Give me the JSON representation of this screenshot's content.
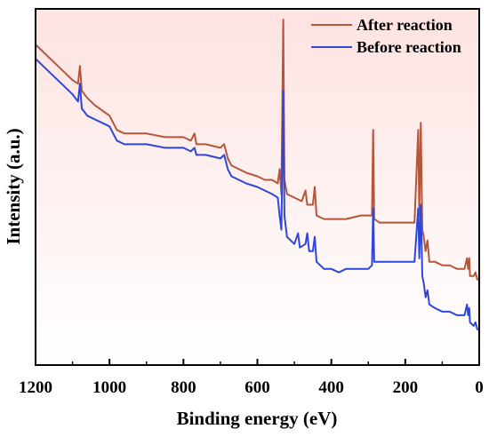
{
  "chart_data": {
    "type": "line",
    "title": "",
    "xlabel": "Binding energy (eV)",
    "ylabel": "Intensity (a.u.)",
    "xlim": [
      1200,
      0
    ],
    "x_reversed": true,
    "x_ticks": [
      1200,
      1000,
      800,
      600,
      400,
      200,
      0
    ],
    "y_ticks_shown": false,
    "ylim": [
      0,
      100
    ],
    "legend_position": "top-right",
    "background_color": "#fde8e6",
    "series": [
      {
        "name": "After reaction",
        "color": "#b5553a",
        "points": [
          [
            1200,
            90
          ],
          [
            1180,
            88
          ],
          [
            1150,
            85
          ],
          [
            1120,
            82
          ],
          [
            1100,
            80
          ],
          [
            1085,
            79
          ],
          [
            1080,
            84
          ],
          [
            1075,
            77
          ],
          [
            1060,
            75
          ],
          [
            1040,
            73
          ],
          [
            1000,
            70
          ],
          [
            990,
            68
          ],
          [
            980,
            66
          ],
          [
            960,
            65
          ],
          [
            900,
            65
          ],
          [
            850,
            64
          ],
          [
            800,
            64
          ],
          [
            780,
            63
          ],
          [
            770,
            65
          ],
          [
            765,
            62
          ],
          [
            740,
            62
          ],
          [
            700,
            61
          ],
          [
            690,
            62
          ],
          [
            685,
            60
          ],
          [
            680,
            58
          ],
          [
            670,
            56
          ],
          [
            650,
            55
          ],
          [
            630,
            54
          ],
          [
            600,
            53
          ],
          [
            580,
            52
          ],
          [
            560,
            52
          ],
          [
            545,
            51
          ],
          [
            540,
            55
          ],
          [
            535,
            48
          ],
          [
            530,
            97
          ],
          [
            527,
            52
          ],
          [
            520,
            48
          ],
          [
            500,
            47
          ],
          [
            480,
            46
          ],
          [
            470,
            49
          ],
          [
            465,
            45
          ],
          [
            450,
            45
          ],
          [
            445,
            50
          ],
          [
            440,
            42
          ],
          [
            420,
            41
          ],
          [
            400,
            41
          ],
          [
            380,
            41
          ],
          [
            360,
            41
          ],
          [
            320,
            42
          ],
          [
            300,
            42
          ],
          [
            290,
            42
          ],
          [
            287,
            66
          ],
          [
            284,
            41
          ],
          [
            270,
            40
          ],
          [
            240,
            40
          ],
          [
            200,
            40
          ],
          [
            175,
            40
          ],
          [
            165,
            66
          ],
          [
            162,
            42
          ],
          [
            158,
            68
          ],
          [
            154,
            38
          ],
          [
            150,
            36
          ],
          [
            145,
            32
          ],
          [
            140,
            35
          ],
          [
            135,
            29
          ],
          [
            120,
            29
          ],
          [
            100,
            28
          ],
          [
            80,
            28
          ],
          [
            60,
            27
          ],
          [
            40,
            27
          ],
          [
            33,
            30
          ],
          [
            30,
            27
          ],
          [
            27,
            30
          ],
          [
            25,
            25
          ],
          [
            15,
            25
          ],
          [
            10,
            26
          ],
          [
            5,
            24
          ],
          [
            0,
            24
          ]
        ]
      },
      {
        "name": "Before reaction",
        "color": "#2f47d8",
        "points": [
          [
            1200,
            86
          ],
          [
            1180,
            84
          ],
          [
            1150,
            81
          ],
          [
            1120,
            78
          ],
          [
            1100,
            76
          ],
          [
            1085,
            74
          ],
          [
            1080,
            79
          ],
          [
            1075,
            72
          ],
          [
            1060,
            70
          ],
          [
            1040,
            69
          ],
          [
            1000,
            67
          ],
          [
            990,
            65
          ],
          [
            980,
            63
          ],
          [
            960,
            62
          ],
          [
            900,
            62
          ],
          [
            850,
            61
          ],
          [
            800,
            61
          ],
          [
            780,
            60
          ],
          [
            770,
            61
          ],
          [
            765,
            59
          ],
          [
            740,
            59
          ],
          [
            700,
            58
          ],
          [
            690,
            59
          ],
          [
            685,
            57
          ],
          [
            680,
            55
          ],
          [
            670,
            53
          ],
          [
            650,
            52
          ],
          [
            630,
            51
          ],
          [
            600,
            50
          ],
          [
            580,
            49
          ],
          [
            560,
            48
          ],
          [
            545,
            47
          ],
          [
            540,
            42
          ],
          [
            535,
            38
          ],
          [
            530,
            77
          ],
          [
            527,
            42
          ],
          [
            520,
            36
          ],
          [
            500,
            34
          ],
          [
            490,
            37
          ],
          [
            485,
            33
          ],
          [
            470,
            34
          ],
          [
            465,
            37
          ],
          [
            460,
            32
          ],
          [
            450,
            32
          ],
          [
            445,
            36
          ],
          [
            440,
            29
          ],
          [
            420,
            27
          ],
          [
            400,
            27
          ],
          [
            380,
            26
          ],
          [
            360,
            27
          ],
          [
            320,
            27
          ],
          [
            300,
            27
          ],
          [
            290,
            28
          ],
          [
            287,
            44
          ],
          [
            284,
            29
          ],
          [
            270,
            29
          ],
          [
            240,
            29
          ],
          [
            200,
            29
          ],
          [
            175,
            29
          ],
          [
            165,
            44
          ],
          [
            162,
            30
          ],
          [
            158,
            45
          ],
          [
            154,
            25
          ],
          [
            150,
            23
          ],
          [
            145,
            19
          ],
          [
            140,
            21
          ],
          [
            135,
            17
          ],
          [
            120,
            16
          ],
          [
            100,
            15
          ],
          [
            80,
            15
          ],
          [
            60,
            14
          ],
          [
            40,
            14
          ],
          [
            33,
            17
          ],
          [
            30,
            14
          ],
          [
            27,
            16
          ],
          [
            25,
            12
          ],
          [
            15,
            11
          ],
          [
            10,
            12
          ],
          [
            5,
            10
          ],
          [
            0,
            10
          ]
        ]
      }
    ]
  }
}
